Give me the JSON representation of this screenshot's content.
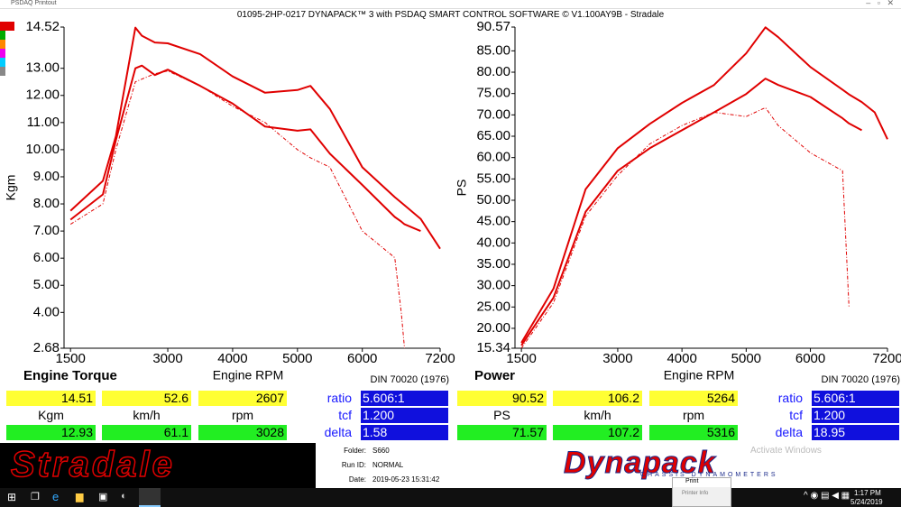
{
  "window": {
    "app": "PSDAQ Printout",
    "title": "01095-2HP-0217 DYNAPACK™ 3 with PSDAQ SMART CONTROL SOFTWARE © V1.100AY9B - Stradale"
  },
  "chart_data": [
    {
      "type": "line",
      "title": "Engine Torque",
      "x_label": "Engine RPM",
      "y_label": "Kgm",
      "note": "DIN 70020 (1976)",
      "x": [
        1500,
        2000,
        2200,
        2500,
        2600,
        2800,
        3000,
        3500,
        4000,
        4500,
        5000,
        5200,
        5500,
        6000,
        6500,
        6600,
        6650,
        6900,
        7200
      ],
      "series": [
        {
          "color": "#e00000",
          "dash": false,
          "values": [
            7.75,
            8.85,
            10.5,
            14.5,
            14.2,
            13.95,
            13.92,
            13.52,
            12.7,
            12.1,
            12.2,
            12.35,
            11.5,
            9.35,
            8.25,
            8.05,
            7.95,
            7.45,
            6.35
          ]
        },
        {
          "color": "#e00000",
          "dash": false,
          "values": [
            7.42,
            8.35,
            10.35,
            13.0,
            13.1,
            12.75,
            12.95,
            12.35,
            11.7,
            10.85,
            10.7,
            10.75,
            9.85,
            8.7,
            7.52,
            7.35,
            7.25,
            7.0,
            null
          ]
        },
        {
          "color": "#e00000",
          "dash": true,
          "values": [
            7.25,
            8.0,
            10.0,
            12.5,
            12.6,
            12.8,
            12.9,
            12.35,
            11.6,
            11.0,
            10.0,
            9.7,
            9.35,
            7.0,
            6.02,
            4.0,
            2.68,
            null,
            null
          ]
        }
      ],
      "xlim": [
        1400,
        7200
      ],
      "xticks": [
        1500,
        3000,
        4000,
        5000,
        6000,
        7200
      ],
      "ylim": [
        2.68,
        14.52
      ],
      "yticks": [
        2.68,
        {
          "value": 4,
          "label": "4.00"
        },
        {
          "value": 5,
          "label": "5.00"
        },
        {
          "value": 6,
          "label": "6.00"
        },
        {
          "value": 7,
          "label": "7.00"
        },
        {
          "value": 8,
          "label": "8.00"
        },
        {
          "value": 9,
          "label": "9.00"
        },
        {
          "value": 10,
          "label": "10.00"
        },
        {
          "value": 11,
          "label": "11.00"
        },
        {
          "value": 12,
          "label": "12.00"
        },
        {
          "value": 13,
          "label": "13.00"
        },
        14.52
      ]
    },
    {
      "type": "line",
      "title": "Power",
      "x_label": "Engine RPM",
      "y_label": "PS",
      "note": "DIN 70020 (1976)",
      "x": [
        1500,
        2000,
        2500,
        3000,
        3500,
        4000,
        4500,
        5000,
        5300,
        5500,
        6000,
        6500,
        6600,
        6800,
        7000,
        7200
      ],
      "series": [
        {
          "color": "#e00000",
          "dash": false,
          "values": [
            16.6,
            29.3,
            52.6,
            62.2,
            67.9,
            72.8,
            77.0,
            84.4,
            90.5,
            88.2,
            81.2,
            75.9,
            74.8,
            73.0,
            70.6,
            64.3
          ]
        },
        {
          "color": "#e00000",
          "dash": false,
          "values": [
            16.0,
            27.2,
            47.3,
            56.9,
            62.2,
            66.4,
            70.6,
            74.9,
            78.5,
            77.0,
            74.2,
            69.2,
            68.0,
            66.4,
            null,
            null
          ]
        },
        {
          "color": "#e00000",
          "dash": true,
          "values": [
            15.34,
            26.0,
            46.3,
            55.8,
            63.2,
            67.5,
            70.6,
            69.6,
            71.7,
            67.5,
            61.1,
            56.9,
            25.1,
            null,
            null,
            null
          ]
        }
      ],
      "xlim": [
        1400,
        7200
      ],
      "xticks": [
        1500,
        3000,
        4000,
        5000,
        6000,
        7200
      ],
      "ylim": [
        15.34,
        90.57
      ],
      "yticks": [
        15.34,
        {
          "value": 20,
          "label": "20.00"
        },
        {
          "value": 25,
          "label": "25.00"
        },
        {
          "value": 30,
          "label": "30.00"
        },
        {
          "value": 35,
          "label": "35.00"
        },
        {
          "value": 40,
          "label": "40.00"
        },
        {
          "value": 45,
          "label": "45.00"
        },
        {
          "value": 50,
          "label": "50.00"
        },
        {
          "value": 55,
          "label": "55.00"
        },
        {
          "value": 60,
          "label": "60.00"
        },
        {
          "value": 65,
          "label": "65.00"
        },
        {
          "value": 70,
          "label": "70.00"
        },
        {
          "value": 75,
          "label": "75.00"
        },
        {
          "value": 80,
          "label": "80.00"
        },
        {
          "value": 85,
          "label": "85.00"
        },
        90.57
      ]
    }
  ],
  "panels": [
    {
      "yellow": [
        "14.51",
        "52.6",
        "2607"
      ],
      "units": [
        "Kgm",
        "km/h",
        "rpm"
      ],
      "green": [
        "12.93",
        "61.1",
        "3028"
      ],
      "params": [
        {
          "label": "ratio",
          "value": "5.606:1"
        },
        {
          "label": "tcf",
          "value": "1.200"
        },
        {
          "label": "delta",
          "value": "1.58"
        }
      ]
    },
    {
      "yellow": [
        "90.52",
        "106.2",
        "5264"
      ],
      "units": [
        "PS",
        "km/h",
        "rpm"
      ],
      "green": [
        "71.57",
        "107.2",
        "5316"
      ],
      "params": [
        {
          "label": "ratio",
          "value": "5.606:1"
        },
        {
          "label": "tcf",
          "value": "1.200"
        },
        {
          "label": "delta",
          "value": "18.95"
        }
      ]
    }
  ],
  "info": [
    {
      "label": "Folder:",
      "value": "S660"
    },
    {
      "label": "Run ID:",
      "value": "NORMAL"
    },
    {
      "label": "Date:",
      "value": "2019-05-23 15:31:42"
    }
  ],
  "logos": {
    "left": "Stradale",
    "right": "Dynapack",
    "right_sub": "CHASSIS DYNAMOMETERS"
  },
  "watermark": "Activate Windows",
  "popup": {
    "title": "Print",
    "body": "Printer Info"
  },
  "taskbar": {
    "time": "1:17 PM",
    "date": "5/24/2019"
  }
}
